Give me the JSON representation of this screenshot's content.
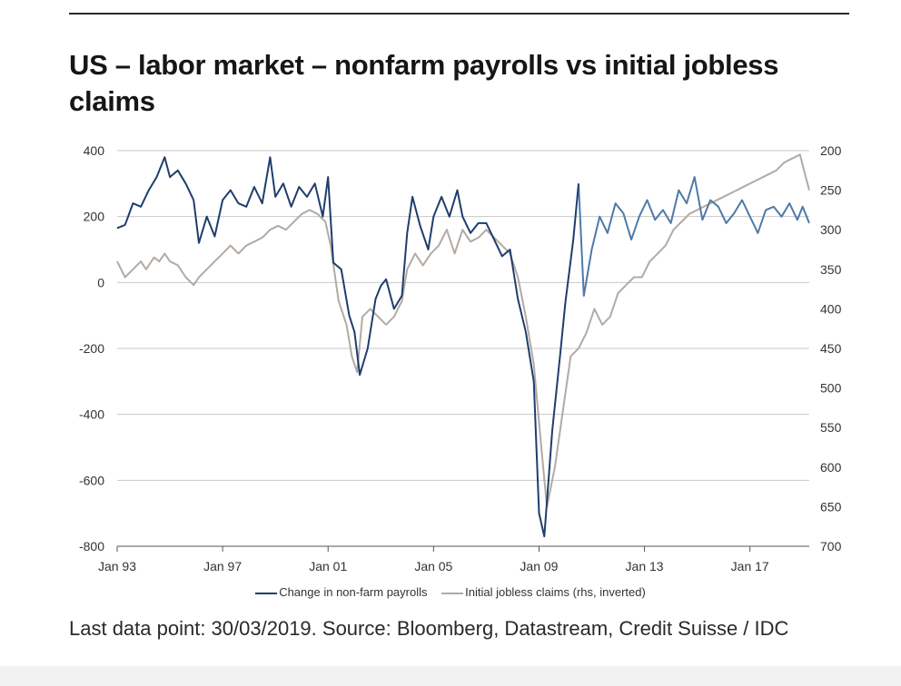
{
  "title": "US – labor market – nonfarm payrolls vs initial jobless claims",
  "source": "Last data point: 30/03/2019. Source: Bloomberg, Datastream, Credit Suisse / IDC",
  "colors": {
    "payrolls": "#1f3d6e",
    "payrolls_light": "#4f79a8",
    "claims": "#b3aaa3",
    "grid": "#c8c8c8",
    "axis": "#555555"
  },
  "chart_data": {
    "type": "line",
    "title": "US – labor market – nonfarm payrolls vs initial jobless claims",
    "x_ticks": [
      "Jan 93",
      "Jan 97",
      "Jan 01",
      "Jan 05",
      "Jan 09",
      "Jan 13",
      "Jan 17"
    ],
    "x_tick_years": [
      1993,
      1997,
      2001,
      2005,
      2009,
      2013,
      2017
    ],
    "xlim": [
      1993,
      2019.25
    ],
    "y_left": {
      "lim": [
        -800,
        400
      ],
      "ticks": [
        "400",
        "200",
        "0",
        "-200",
        "-400",
        "-600",
        "-800"
      ]
    },
    "y_right": {
      "lim": [
        700,
        200
      ],
      "inverted": true,
      "ticks": [
        "200",
        "250",
        "300",
        "350",
        "400",
        "450",
        "500",
        "550",
        "600",
        "650",
        "700"
      ]
    },
    "grid": true,
    "legend_position": "bottom",
    "series": [
      {
        "name": "Change in non-farm payrolls",
        "axis": "left",
        "points": [
          [
            1993.0,
            165
          ],
          [
            1993.3,
            175
          ],
          [
            1993.6,
            240
          ],
          [
            1993.9,
            230
          ],
          [
            1994.2,
            280
          ],
          [
            1994.5,
            320
          ],
          [
            1994.8,
            380
          ],
          [
            1995.0,
            320
          ],
          [
            1995.3,
            340
          ],
          [
            1995.6,
            300
          ],
          [
            1995.9,
            250
          ],
          [
            1996.1,
            120
          ],
          [
            1996.4,
            200
          ],
          [
            1996.7,
            140
          ],
          [
            1997.0,
            250
          ],
          [
            1997.3,
            280
          ],
          [
            1997.6,
            240
          ],
          [
            1997.9,
            230
          ],
          [
            1998.2,
            290
          ],
          [
            1998.5,
            240
          ],
          [
            1998.8,
            380
          ],
          [
            1999.0,
            260
          ],
          [
            1999.3,
            300
          ],
          [
            1999.6,
            230
          ],
          [
            1999.9,
            290
          ],
          [
            2000.2,
            260
          ],
          [
            2000.5,
            300
          ],
          [
            2000.8,
            200
          ],
          [
            2001.0,
            320
          ],
          [
            2001.2,
            60
          ],
          [
            2001.5,
            40
          ],
          [
            2001.8,
            -100
          ],
          [
            2002.0,
            -150
          ],
          [
            2002.2,
            -280
          ],
          [
            2002.5,
            -200
          ],
          [
            2002.8,
            -50
          ],
          [
            2003.0,
            -10
          ],
          [
            2003.2,
            10
          ],
          [
            2003.5,
            -80
          ],
          [
            2003.8,
            -40
          ],
          [
            2004.0,
            150
          ],
          [
            2004.2,
            260
          ],
          [
            2004.5,
            170
          ],
          [
            2004.8,
            100
          ],
          [
            2005.0,
            200
          ],
          [
            2005.3,
            260
          ],
          [
            2005.6,
            200
          ],
          [
            2005.9,
            280
          ],
          [
            2006.1,
            200
          ],
          [
            2006.4,
            150
          ],
          [
            2006.7,
            180
          ],
          [
            2007.0,
            180
          ],
          [
            2007.3,
            130
          ],
          [
            2007.6,
            80
          ],
          [
            2007.9,
            100
          ],
          [
            2008.2,
            -50
          ],
          [
            2008.5,
            -150
          ],
          [
            2008.8,
            -300
          ],
          [
            2009.0,
            -700
          ],
          [
            2009.2,
            -770
          ],
          [
            2009.5,
            -450
          ],
          [
            2009.8,
            -220
          ],
          [
            2010.0,
            -60
          ],
          [
            2010.3,
            130
          ],
          [
            2010.5,
            300
          ],
          [
            2010.7,
            -40
          ],
          [
            2011.0,
            100
          ],
          [
            2011.3,
            200
          ],
          [
            2011.6,
            150
          ],
          [
            2011.9,
            240
          ],
          [
            2012.2,
            210
          ],
          [
            2012.5,
            130
          ],
          [
            2012.8,
            200
          ],
          [
            2013.1,
            250
          ],
          [
            2013.4,
            190
          ],
          [
            2013.7,
            220
          ],
          [
            2014.0,
            180
          ],
          [
            2014.3,
            280
          ],
          [
            2014.6,
            240
          ],
          [
            2014.9,
            320
          ],
          [
            2015.2,
            190
          ],
          [
            2015.5,
            250
          ],
          [
            2015.8,
            230
          ],
          [
            2016.1,
            180
          ],
          [
            2016.4,
            210
          ],
          [
            2016.7,
            250
          ],
          [
            2017.0,
            200
          ],
          [
            2017.3,
            150
          ],
          [
            2017.6,
            220
          ],
          [
            2017.9,
            230
          ],
          [
            2018.2,
            200
          ],
          [
            2018.5,
            240
          ],
          [
            2018.8,
            190
          ],
          [
            2019.0,
            230
          ],
          [
            2019.25,
            180
          ]
        ]
      },
      {
        "name": "Initial jobless claims (rhs, inverted)",
        "axis": "right",
        "points": [
          [
            1993.0,
            340
          ],
          [
            1993.3,
            360
          ],
          [
            1993.6,
            350
          ],
          [
            1993.9,
            340
          ],
          [
            1994.1,
            350
          ],
          [
            1994.4,
            335
          ],
          [
            1994.6,
            340
          ],
          [
            1994.8,
            330
          ],
          [
            1995.0,
            340
          ],
          [
            1995.3,
            345
          ],
          [
            1995.6,
            360
          ],
          [
            1995.9,
            370
          ],
          [
            1996.1,
            360
          ],
          [
            1996.4,
            350
          ],
          [
            1996.7,
            340
          ],
          [
            1997.0,
            330
          ],
          [
            1997.3,
            320
          ],
          [
            1997.6,
            330
          ],
          [
            1997.9,
            320
          ],
          [
            1998.2,
            315
          ],
          [
            1998.5,
            310
          ],
          [
            1998.8,
            300
          ],
          [
            1999.1,
            295
          ],
          [
            1999.4,
            300
          ],
          [
            1999.7,
            290
          ],
          [
            2000.0,
            280
          ],
          [
            2000.3,
            275
          ],
          [
            2000.6,
            280
          ],
          [
            2000.9,
            290
          ],
          [
            2001.1,
            320
          ],
          [
            2001.4,
            390
          ],
          [
            2001.7,
            420
          ],
          [
            2001.9,
            460
          ],
          [
            2002.1,
            480
          ],
          [
            2002.3,
            410
          ],
          [
            2002.6,
            400
          ],
          [
            2002.9,
            410
          ],
          [
            2003.2,
            420
          ],
          [
            2003.5,
            410
          ],
          [
            2003.8,
            390
          ],
          [
            2004.0,
            350
          ],
          [
            2004.3,
            330
          ],
          [
            2004.6,
            345
          ],
          [
            2004.9,
            330
          ],
          [
            2005.2,
            320
          ],
          [
            2005.5,
            300
          ],
          [
            2005.8,
            330
          ],
          [
            2006.1,
            300
          ],
          [
            2006.4,
            315
          ],
          [
            2006.7,
            310
          ],
          [
            2007.0,
            300
          ],
          [
            2007.3,
            310
          ],
          [
            2007.6,
            320
          ],
          [
            2007.9,
            330
          ],
          [
            2008.2,
            360
          ],
          [
            2008.5,
            410
          ],
          [
            2008.8,
            470
          ],
          [
            2009.1,
            580
          ],
          [
            2009.3,
            650
          ],
          [
            2009.6,
            600
          ],
          [
            2009.9,
            530
          ],
          [
            2010.2,
            460
          ],
          [
            2010.5,
            450
          ],
          [
            2010.8,
            430
          ],
          [
            2011.1,
            400
          ],
          [
            2011.4,
            420
          ],
          [
            2011.7,
            410
          ],
          [
            2012.0,
            380
          ],
          [
            2012.3,
            370
          ],
          [
            2012.6,
            360
          ],
          [
            2012.9,
            360
          ],
          [
            2013.2,
            340
          ],
          [
            2013.5,
            330
          ],
          [
            2013.8,
            320
          ],
          [
            2014.1,
            300
          ],
          [
            2014.4,
            290
          ],
          [
            2014.7,
            280
          ],
          [
            2015.0,
            275
          ],
          [
            2015.3,
            270
          ],
          [
            2015.6,
            265
          ],
          [
            2015.9,
            260
          ],
          [
            2016.2,
            255
          ],
          [
            2016.5,
            250
          ],
          [
            2016.8,
            245
          ],
          [
            2017.1,
            240
          ],
          [
            2017.4,
            235
          ],
          [
            2017.7,
            230
          ],
          [
            2018.0,
            225
          ],
          [
            2018.3,
            215
          ],
          [
            2018.6,
            210
          ],
          [
            2018.9,
            205
          ],
          [
            2019.05,
            225
          ],
          [
            2019.25,
            250
          ]
        ]
      }
    ]
  }
}
